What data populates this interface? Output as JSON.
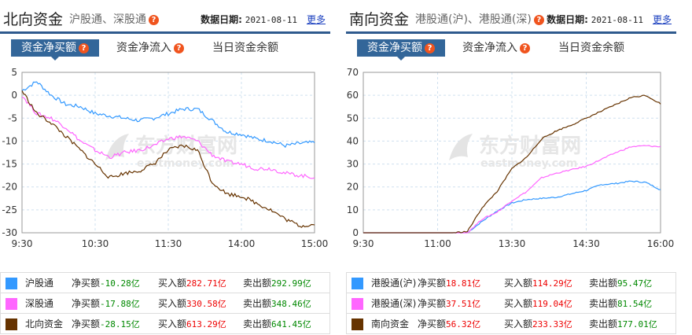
{
  "north": {
    "title": "北向资金",
    "subtitle": "沪股通、深股通",
    "date_label": "数据日期:",
    "date": "2021-08-11",
    "more": "更多",
    "tabs": [
      {
        "label": "资金净买额",
        "active": true,
        "help": true
      },
      {
        "label": "资金净流入",
        "active": false,
        "help": true
      },
      {
        "label": "当日资金余额",
        "active": false,
        "help": false
      }
    ],
    "legend": [
      {
        "name": "沪股通",
        "color": "#3399ff",
        "net_label": "净买额",
        "net": "-10.28亿",
        "buy_label": "买入额",
        "buy": "282.71亿",
        "sell_label": "卖出额",
        "sell": "292.99亿"
      },
      {
        "name": "深股通",
        "color": "#ff66ff",
        "net_label": "净买额",
        "net": "-17.88亿",
        "buy_label": "买入额",
        "buy": "330.58亿",
        "sell_label": "卖出额",
        "sell": "348.46亿"
      },
      {
        "name": "北向资金",
        "color": "#663300",
        "net_label": "净买额",
        "net": "-28.15亿",
        "buy_label": "买入额",
        "buy": "613.29亿",
        "sell_label": "卖出额",
        "sell": "641.45亿"
      }
    ]
  },
  "south": {
    "title": "南向资金",
    "subtitle": "港股通(沪)、港股通(深)",
    "date_label": "数据日期:",
    "date": "2021-08-11",
    "more": "更多",
    "tabs": [
      {
        "label": "资金净买额",
        "active": true,
        "help": true
      },
      {
        "label": "资金净流入",
        "active": false,
        "help": true
      },
      {
        "label": "当日资金余额",
        "active": false,
        "help": false
      }
    ],
    "legend": [
      {
        "name": "港股通(沪)",
        "color": "#3399ff",
        "net_label": "净买额",
        "net": "18.81亿",
        "buy_label": "买入额",
        "buy": "114.29亿",
        "sell_label": "卖出额",
        "sell": "95.47亿"
      },
      {
        "name": "港股通(深)",
        "color": "#ff66ff",
        "net_label": "净买额",
        "net": "37.51亿",
        "buy_label": "买入额",
        "buy": "119.04亿",
        "sell_label": "卖出额",
        "sell": "81.54亿"
      },
      {
        "name": "南向资金",
        "color": "#663300",
        "net_label": "净买额",
        "net": "56.32亿",
        "buy_label": "买入额",
        "buy": "233.33亿",
        "sell_label": "卖出额",
        "sell": "177.01亿"
      }
    ]
  },
  "watermark": {
    "cn": "东方财富网",
    "en": "eastmoney.com"
  },
  "chart_data": [
    {
      "type": "line",
      "title": "北向资金 资金净买额",
      "xlabel": "",
      "ylabel": "亿",
      "ylim": [
        -30,
        5
      ],
      "yticks": [
        5,
        0,
        -5,
        -10,
        -15,
        -20,
        -25,
        -30
      ],
      "xticks": [
        "9:30",
        "10:30",
        "11:30",
        "14:00",
        "15:00"
      ],
      "grid": true,
      "x": [
        0,
        0.05,
        0.1,
        0.15,
        0.2,
        0.25,
        0.3,
        0.35,
        0.4,
        0.45,
        0.5,
        0.55,
        0.6,
        0.65,
        0.7,
        0.75,
        0.8,
        0.85,
        0.9,
        0.95,
        1.0
      ],
      "series": [
        {
          "name": "沪股通",
          "color": "#3399ff",
          "values": [
            1,
            3,
            0,
            -2,
            -2.5,
            -4,
            -4.5,
            -5,
            -5.5,
            -5,
            -4,
            -3,
            -3,
            -5.5,
            -8,
            -8.5,
            -9.5,
            -10,
            -11,
            -10.5,
            -10.3
          ]
        },
        {
          "name": "深股通",
          "color": "#ff66ff",
          "values": [
            0,
            -4,
            -5,
            -7,
            -10,
            -12,
            -13.5,
            -12.5,
            -12,
            -11,
            -9.5,
            -9,
            -10,
            -13,
            -14.5,
            -15,
            -16,
            -16,
            -17,
            -17.5,
            -17.9
          ]
        },
        {
          "name": "北向资金",
          "color": "#663300",
          "values": [
            1,
            -4,
            -6,
            -9,
            -12,
            -15,
            -18,
            -17,
            -16.5,
            -15,
            -12,
            -11,
            -12,
            -19,
            -21.5,
            -22,
            -23.5,
            -25,
            -27,
            -28.5,
            -28.2
          ]
        }
      ]
    },
    {
      "type": "line",
      "title": "南向资金 资金净买额",
      "xlabel": "",
      "ylabel": "亿",
      "ylim": [
        0,
        70
      ],
      "yticks": [
        70,
        60,
        50,
        40,
        30,
        20,
        10,
        0
      ],
      "xticks": [
        "9:30",
        "11:00",
        "13:30",
        "14:30",
        "16:00"
      ],
      "grid": true,
      "x": [
        0,
        0.05,
        0.1,
        0.15,
        0.2,
        0.25,
        0.3,
        0.35,
        0.4,
        0.45,
        0.5,
        0.55,
        0.6,
        0.65,
        0.7,
        0.75,
        0.8,
        0.85,
        0.9,
        0.95,
        1.0
      ],
      "series": [
        {
          "name": "港股通(沪)",
          "color": "#3399ff",
          "values": [
            0,
            0,
            0,
            0,
            0,
            0,
            0,
            0,
            5,
            9.5,
            13,
            14.5,
            15,
            15.5,
            17,
            18.5,
            21,
            21.5,
            22.5,
            22,
            18.8
          ]
        },
        {
          "name": "港股通(深)",
          "color": "#ff66ff",
          "values": [
            0,
            0,
            0,
            0,
            0,
            0,
            0,
            0,
            6,
            9,
            14,
            18,
            24,
            26,
            27.5,
            29,
            32,
            35,
            37.5,
            38,
            37.5
          ]
        },
        {
          "name": "南向资金",
          "color": "#663300",
          "values": [
            0,
            0,
            0,
            0,
            0,
            0,
            0,
            0.5,
            11,
            18,
            28,
            33,
            41,
            44.5,
            47,
            50,
            53,
            56,
            59,
            60,
            56.3
          ]
        }
      ]
    }
  ]
}
